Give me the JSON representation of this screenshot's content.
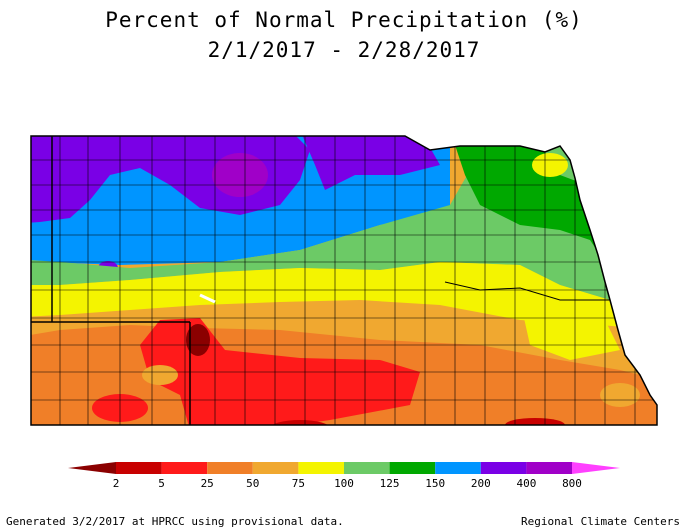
{
  "title": "Percent of Normal Precipitation (%)",
  "subtitle": "2/1/2017 - 2/28/2017",
  "legend": {
    "labels": [
      "2",
      "5",
      "25",
      "50",
      "75",
      "100",
      "125",
      "150",
      "200",
      "400",
      "800"
    ],
    "colors": [
      "#8b0000",
      "#c80000",
      "#ff1a1a",
      "#f07f28",
      "#f0a830",
      "#f4f400",
      "#6cca66",
      "#00a800",
      "#0095ff",
      "#7a00e6",
      "#a000c8",
      "#ff40ff"
    ]
  },
  "footer": {
    "left": "Generated 3/2/2017 at HPRCC using provisional data.",
    "right": "Regional Climate Centers"
  }
}
